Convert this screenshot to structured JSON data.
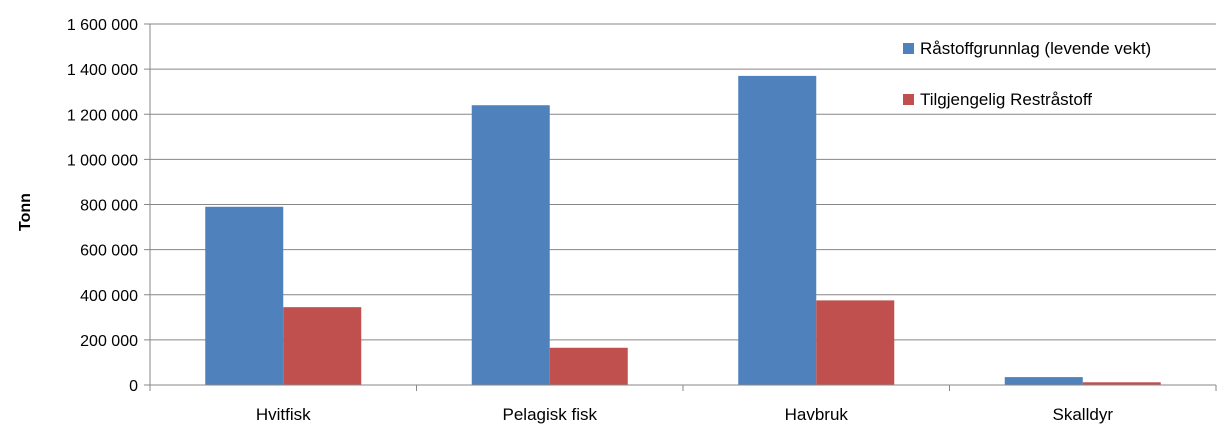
{
  "chart_data": {
    "type": "bar",
    "ylabel": "Tonn",
    "xlabel": "",
    "ylim": [
      0,
      1600000
    ],
    "yticks": [
      0,
      200000,
      400000,
      600000,
      800000,
      1000000,
      1200000,
      1400000,
      1600000
    ],
    "ytick_labels": [
      "0",
      "200 000",
      "400 000",
      "600 000",
      "800 000",
      "1 000 000",
      "1 200 000",
      "1 400 000",
      "1 600 000"
    ],
    "categories": [
      "Hvitfisk",
      "Pelagisk fisk",
      "Havbruk",
      "Skalldyr"
    ],
    "series": [
      {
        "name": "Råstoffgrunnlag (levende vekt)",
        "color": "#4F81BD",
        "values": [
          790000,
          1240000,
          1370000,
          35000
        ]
      },
      {
        "name": "Tilgjengelig Restråstoff",
        "color": "#C0504D",
        "values": [
          345000,
          165000,
          375000,
          12000
        ]
      }
    ],
    "grid": true,
    "legend_position": "top-right"
  }
}
